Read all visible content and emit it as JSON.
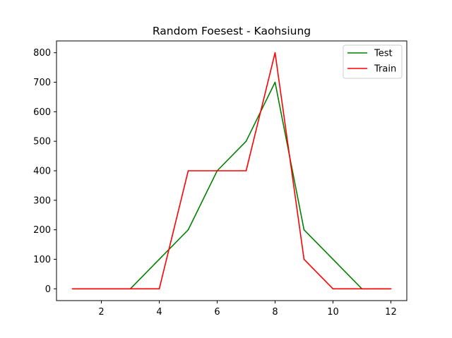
{
  "chart_data": {
    "type": "line",
    "title": "Random Foesest - Kaohsiung",
    "xlabel": "",
    "ylabel": "",
    "x": [
      1,
      2,
      3,
      4,
      5,
      6,
      7,
      8,
      9,
      10,
      11,
      12
    ],
    "series": [
      {
        "name": "Test",
        "color": "#008000",
        "values": [
          0,
          0,
          0,
          100,
          200,
          400,
          500,
          700,
          200,
          100,
          0,
          0
        ]
      },
      {
        "name": "Train",
        "color": "#ff0000",
        "values": [
          0,
          0,
          0,
          0,
          400,
          400,
          400,
          800,
          100,
          0,
          0,
          0
        ]
      }
    ],
    "xticks": [
      2,
      4,
      6,
      8,
      10,
      12
    ],
    "yticks": [
      0,
      100,
      200,
      300,
      400,
      500,
      600,
      700,
      800
    ],
    "xlim": [
      0.45,
      12.55
    ],
    "ylim": [
      -40,
      840
    ],
    "grid": false,
    "legend": "top-right"
  }
}
